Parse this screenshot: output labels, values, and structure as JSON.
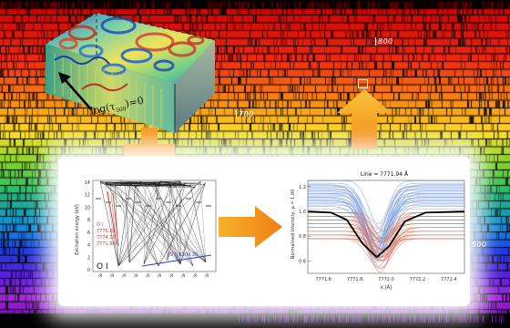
{
  "colors": {
    "background": "#000000",
    "arrow_orange": "#f39a1e",
    "oi_red": "#d63c2c",
    "oi_blue": "#2a39c4",
    "curve_blue": "#6f93d8",
    "curve_red": "#d9735a",
    "panel": "#ffffff"
  },
  "spectrum": {
    "wavelength_labels": [
      {
        "label": "800",
        "row": 0
      },
      {
        "label": "700",
        "row": 1
      },
      {
        "label": "500",
        "row": 2
      },
      {
        "label": "400",
        "row": 3
      }
    ]
  },
  "simulation_cube": {
    "optical_depth_label": "log(τ",
    "optical_depth_sub": "500",
    "optical_depth_tail": ")=0"
  },
  "grotrian": {
    "ylabel": "Excitation energy (eV)",
    "yticks": [
      "14",
      "12",
      "10",
      "8",
      "6",
      "4",
      "2",
      "0"
    ],
    "ion_label": "O I",
    "top_label": "S",
    "red_lines": [
      "O I",
      "7775.39",
      "7774.17",
      "7771.94"
    ],
    "blue_line": "[O I] 6300.30"
  },
  "line_profile": {
    "title": "Line = 7771.94 Å",
    "ylabel": "Normalised Intensity, μ = 1.00",
    "xlabel": "λ [Å]",
    "yticks": [
      "1.2",
      "1.0",
      "0.8",
      "0.6"
    ],
    "xticks": [
      "7771.6",
      "7771.8",
      "7772.0",
      "7772.2",
      "7772.4"
    ]
  },
  "chart_data": {
    "type": "line",
    "title": "Line = 7771.94 Å",
    "xlabel": "λ [Å]",
    "ylabel": "Normalised Intensity, μ = 1.00",
    "xlim": [
      7771.5,
      7772.5
    ],
    "ylim": [
      0.5,
      1.25
    ],
    "series": [
      {
        "x": [
          7771.5,
          7771.65,
          7771.75,
          7771.85,
          7771.94,
          7772.02,
          7772.12,
          7772.25,
          7772.5
        ],
        "y": [
          1.0,
          0.99,
          0.93,
          0.74,
          0.63,
          0.72,
          0.92,
          0.99,
          1.0
        ]
      }
    ]
  }
}
